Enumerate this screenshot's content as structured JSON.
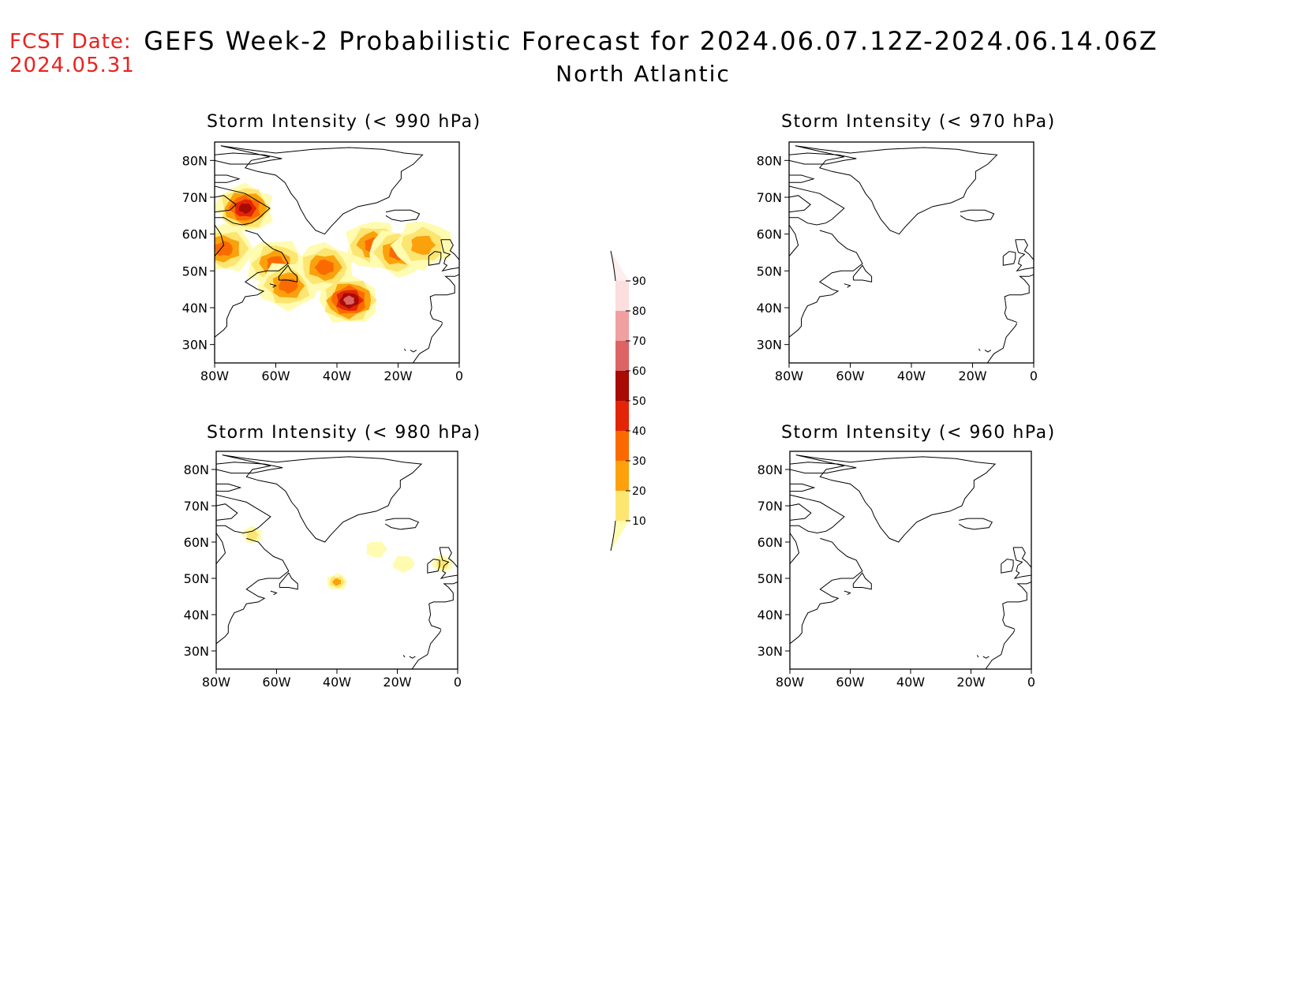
{
  "header": {
    "fcst_line1": "FCST Date:",
    "fcst_line2": "2024.05.31",
    "title": "GEFS Week-2 Probabilistic Forecast for 2024.06.07.12Z-2024.06.14.06Z",
    "subtitle": "North Atlantic"
  },
  "panels": [
    {
      "title": "Storm Intensity (< 990 hPa)",
      "threshold_hpa": 990
    },
    {
      "title": "Storm Intensity (< 970 hPa)",
      "threshold_hpa": 970
    },
    {
      "title": "Storm Intensity (< 980 hPa)",
      "threshold_hpa": 980
    },
    {
      "title": "Storm Intensity (< 960 hPa)",
      "threshold_hpa": 960
    }
  ],
  "axes": {
    "x_ticks": [
      "80W",
      "60W",
      "40W",
      "20W",
      "0"
    ],
    "y_ticks": [
      "80N",
      "70N",
      "60N",
      "50N",
      "40N",
      "30N"
    ],
    "lon_range": [
      -80,
      0
    ],
    "lat_range": [
      25,
      85
    ]
  },
  "colorbar": {
    "levels": [
      "10",
      "20",
      "30",
      "40",
      "50",
      "60",
      "70",
      "80",
      "90"
    ],
    "colors": [
      "#fffbb0",
      "#fde572",
      "#fba10c",
      "#fb6a00",
      "#e32507",
      "#a70b04",
      "#dc6464",
      "#f0a0a0",
      "#fbdede",
      "#ffeeee"
    ]
  },
  "probability_areas": {
    "p990": [
      {
        "lon": -70,
        "lat": 67,
        "max_prob": 60
      },
      {
        "lon": -77,
        "lat": 56,
        "max_prob": 40
      },
      {
        "lon": -60,
        "lat": 52,
        "max_prob": 40
      },
      {
        "lon": -56,
        "lat": 46,
        "max_prob": 40
      },
      {
        "lon": -44,
        "lat": 51,
        "max_prob": 40
      },
      {
        "lon": -36,
        "lat": 42,
        "max_prob": 70
      },
      {
        "lon": -28,
        "lat": 57,
        "max_prob": 40
      },
      {
        "lon": -20,
        "lat": 55,
        "max_prob": 40
      },
      {
        "lon": -12,
        "lat": 57,
        "max_prob": 30
      }
    ],
    "p980": [
      {
        "lon": -68,
        "lat": 62,
        "max_prob": 20
      },
      {
        "lon": -40,
        "lat": 49,
        "max_prob": 30
      },
      {
        "lon": -27,
        "lat": 58,
        "max_prob": 10
      },
      {
        "lon": -18,
        "lat": 54,
        "max_prob": 10
      },
      {
        "lon": -5,
        "lat": 54,
        "max_prob": 20
      }
    ]
  }
}
